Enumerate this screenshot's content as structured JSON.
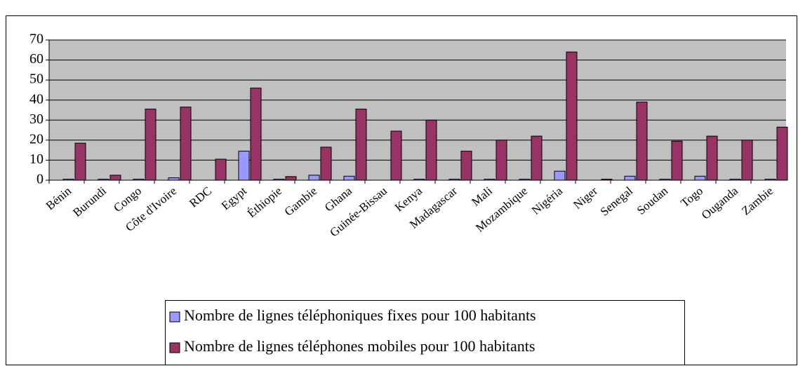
{
  "chart_data": {
    "type": "bar",
    "categories": [
      "Bénin",
      "Burundi",
      "Congo",
      "Côte d'Ivoire",
      "RDC",
      "Egypt",
      "Éthiopie",
      "Gambie",
      "Ghana",
      "Guinée-Bissau",
      "Kenya",
      "Madagascar",
      "Mali",
      "Mozambique",
      "Nigéria",
      "Niger",
      "Senegal",
      "Soudan",
      "Togo",
      "Ouganda",
      "Zambie"
    ],
    "series": [
      {
        "name": "Nombre de lignes téléphoniques fixes pour 100 habitants",
        "color": "#9999ff",
        "values": [
          0.5,
          0.5,
          0.5,
          1.2,
          0,
          14.5,
          0.5,
          2.5,
          2,
          0,
          0.5,
          0.5,
          0.5,
          0.5,
          4.5,
          0,
          2,
          0.5,
          2,
          0.5,
          0.5
        ]
      },
      {
        "name": "Nombre de lignes téléphones mobiles pour 100 habitants",
        "color": "#993366",
        "values": [
          18.5,
          2.5,
          35.5,
          36.5,
          10.5,
          46,
          1.8,
          16.5,
          35.5,
          24.5,
          30,
          14.5,
          20,
          22,
          64,
          0.5,
          39,
          19.5,
          22,
          20,
          26.5
        ]
      }
    ],
    "ylim": [
      0,
      70
    ],
    "yticks": [
      0,
      10,
      20,
      30,
      40,
      50,
      60,
      70
    ],
    "grid": true
  }
}
